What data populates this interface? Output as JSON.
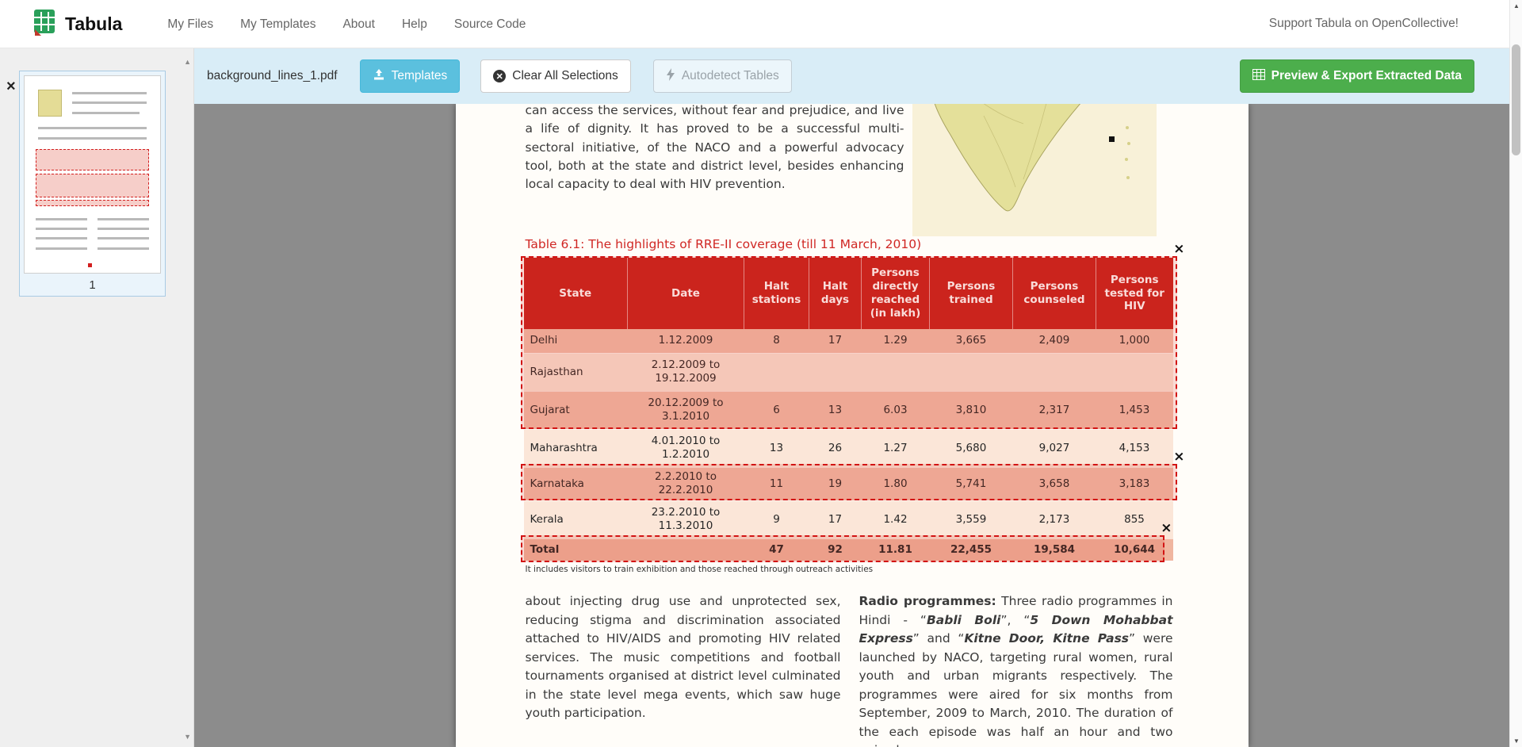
{
  "navbar": {
    "brand": "Tabula",
    "items": [
      {
        "label": "My Files"
      },
      {
        "label": "My Templates"
      },
      {
        "label": "About"
      },
      {
        "label": "Help"
      },
      {
        "label": "Source Code"
      }
    ],
    "right_link": "Support Tabula on OpenCollective!"
  },
  "toolbar": {
    "filename": "background_lines_1.pdf",
    "templates_button": "Templates",
    "clear_button": "Clear All Selections",
    "autodetect_button": "Autodetect Tables",
    "export_button": "Preview & Export Extracted Data"
  },
  "sidebar": {
    "page_number": "1",
    "close_glyph": "×"
  },
  "doc": {
    "intro_paragraph": "can access the services, without fear and prejudice, and live a life of dignity. It has proved to be a successful multi-sectoral initiative, of the NACO and a powerful advocacy tool, both at the state and district level, besides enhancing local capacity to deal with HIV prevention.",
    "table_title": "Table 6.1: The highlights of RRE-II coverage (till 11 March, 2010)",
    "table": {
      "headers": [
        "State",
        "Date",
        "Halt stations",
        "Halt days",
        "Persons directly reached (in lakh)",
        "Persons trained",
        "Persons counseled",
        "Persons tested for HIV"
      ],
      "rows": [
        [
          "Delhi",
          "1.12.2009",
          "8",
          "17",
          "1.29",
          "3,665",
          "2,409",
          "1,000"
        ],
        [
          "Rajasthan",
          "2.12.2009 to 19.12.2009",
          "",
          "",
          "",
          "",
          "",
          ""
        ],
        [
          "Gujarat",
          "20.12.2009 to 3.1.2010",
          "6",
          "13",
          "6.03",
          "3,810",
          "2,317",
          "1,453"
        ],
        [
          "Maharashtra",
          "4.01.2010 to 1.2.2010",
          "13",
          "26",
          "1.27",
          "5,680",
          "9,027",
          "4,153"
        ],
        [
          "Karnataka",
          "2.2.2010 to 22.2.2010",
          "11",
          "19",
          "1.80",
          "5,741",
          "3,658",
          "3,183"
        ],
        [
          "Kerala",
          "23.2.2010 to 11.3.2010",
          "9",
          "17",
          "1.42",
          "3,559",
          "2,173",
          "855"
        ],
        [
          "Total",
          "",
          "47",
          "92",
          "11.81",
          "22,455",
          "19,584",
          "10,644"
        ]
      ],
      "footnote": "It includes visitors to train exhibition and those reached through outreach activities"
    },
    "left_column": "about injecting drug use and unprotected sex, reducing stigma and discrimination associated attached to HIV/AIDS and promoting HIV related services. The music competitions and football tournaments organised at district level culminated in the state level mega events, which saw huge youth participation.",
    "right_column_segments": [
      {
        "t": "Radio programmes:",
        "b": true
      },
      {
        "t": " Three radio programmes in Hindi - “"
      },
      {
        "t": "Babli Boli",
        "b": true,
        "i": true
      },
      {
        "t": "”, “"
      },
      {
        "t": "5 Down Mohabbat Express",
        "b": true,
        "i": true
      },
      {
        "t": "” and “"
      },
      {
        "t": "Kitne Door, Kitne Pass",
        "b": true,
        "i": true
      },
      {
        "t": "” were launched by NACO, targeting rural women, rural youth and urban migrants respectively. The programmes were aired for six months from September, 2009 to March, 2010. The duration of the each episode was half an hour and two episodes"
      }
    ],
    "selection_close_glyph": "×"
  },
  "colors": {
    "toolbar_bg": "#d9edf7",
    "templates_button": "#5bc0de",
    "export_button": "#4cae4c",
    "selection_red": "#d21414",
    "table_header_red": "#c8221d",
    "row_dark": "#f2c0ac",
    "row_light": "#fbe6d8",
    "title_red": "#d02724",
    "workspace_gray": "#8c8c8c"
  }
}
